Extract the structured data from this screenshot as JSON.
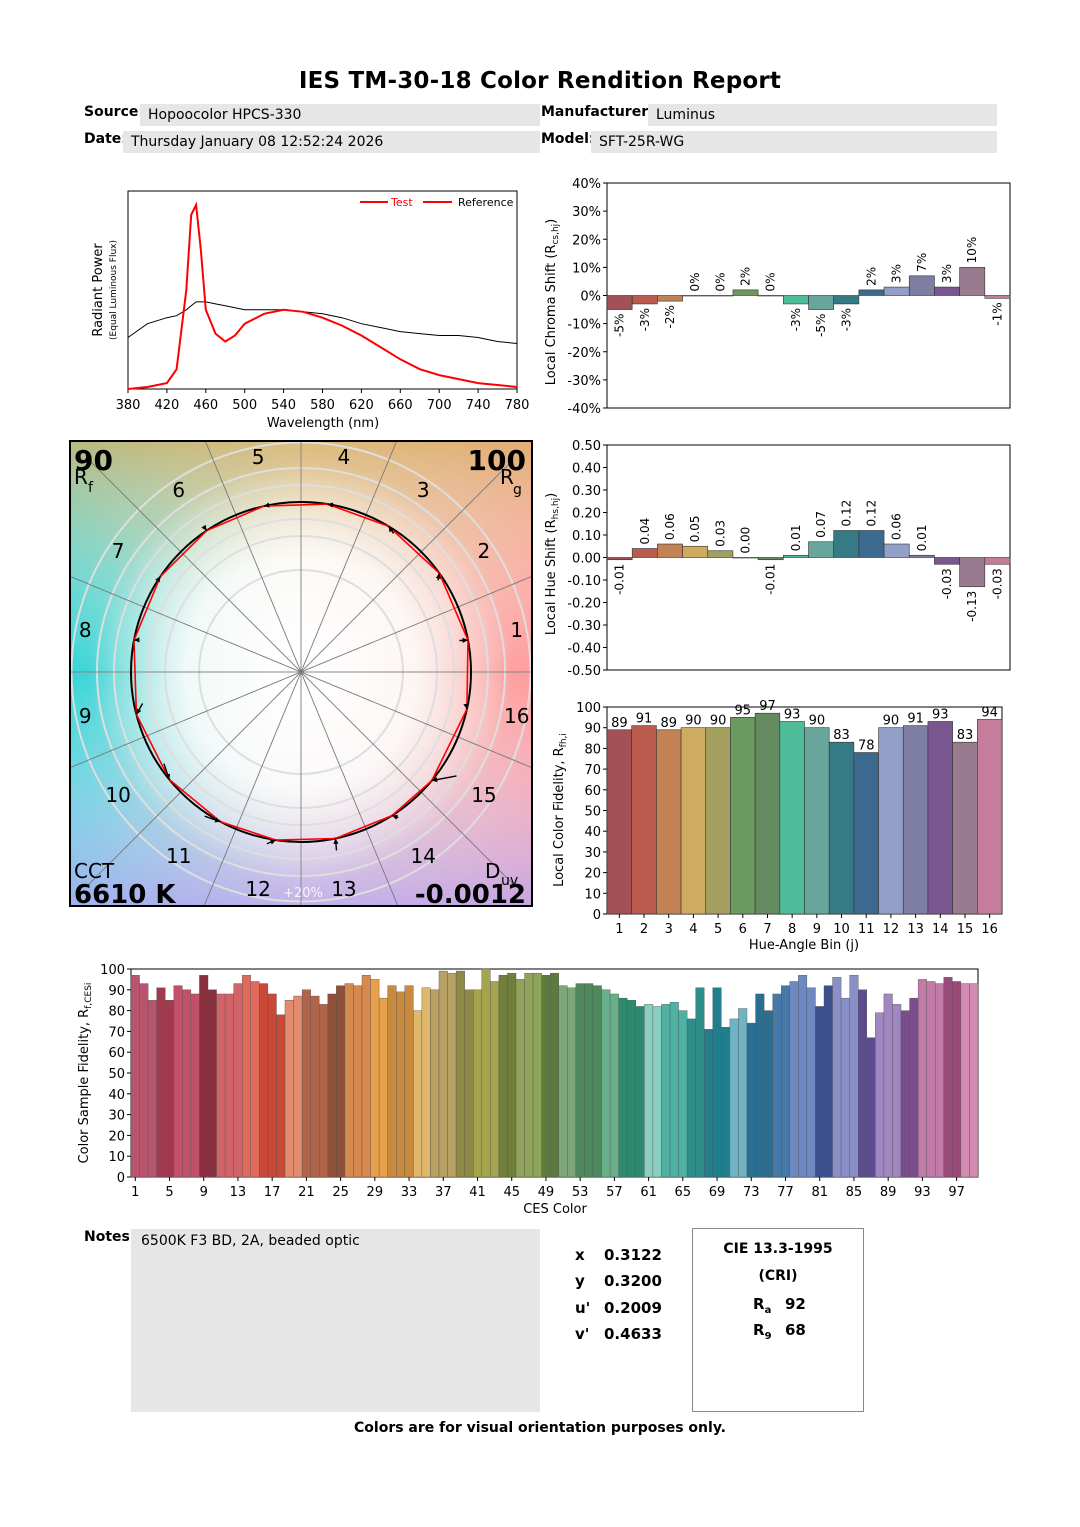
{
  "title": "IES TM-30-18 Color Rendition Report",
  "header": {
    "source_label": "Source:",
    "source": "Hopoocolor HPCS-330",
    "manufacturer_label": "Manufacturer:",
    "manufacturer": "Luminus",
    "date_label": "Date:",
    "date": "Thursday January 08 12:52:24 2026",
    "model_label": "Model:",
    "model": "SFT-25R-WG"
  },
  "spd": {
    "ylabel": "Radiant Power",
    "ylabel2": "(Equal Luminous Flux)",
    "xlabel": "Wavelength (nm)",
    "xticks": [
      "380",
      "420",
      "460",
      "500",
      "540",
      "580",
      "620",
      "660",
      "700",
      "740",
      "780"
    ],
    "legend_test": "Test",
    "legend_ref": "Reference",
    "test_color": "#ff0000",
    "ref_color": "#000000"
  },
  "cvg": {
    "rf_value": "90",
    "rf_label": "R",
    "rf_sub": "f",
    "rg_value": "100",
    "rg_label": "R",
    "rg_sub": "g",
    "cct_label": "CCT",
    "cct_value": "6610 K",
    "duv_label": "D",
    "duv_sub": "uv",
    "duv_value": "-0.0012",
    "scale_label": "+20%",
    "bin_labels": [
      "1",
      "2",
      "3",
      "4",
      "5",
      "6",
      "7",
      "8",
      "9",
      "10",
      "11",
      "12",
      "13",
      "14",
      "15",
      "16"
    ]
  },
  "chroma": {
    "ylabel": "Local Chroma Shift (R",
    "ylabel_sub": "cs,hj",
    "yticks": [
      "40%",
      "30%",
      "20%",
      "10%",
      "0%",
      "-10%",
      "-20%",
      "-30%",
      "-40%"
    ],
    "labels": [
      "-5%",
      "-3%",
      "-2%",
      "0%",
      "0%",
      "2%",
      "0%",
      "-3%",
      "-5%",
      "-3%",
      "2%",
      "3%",
      "7%",
      "3%",
      "10%",
      "-1%"
    ]
  },
  "hue": {
    "ylabel": "Local Hue Shift (R",
    "ylabel_sub": "hs,hj",
    "yticks": [
      "0.50",
      "0.40",
      "0.30",
      "0.20",
      "0.10",
      "0.00",
      "-0.10",
      "-0.20",
      "-0.30",
      "-0.40",
      "-0.50"
    ],
    "labels": [
      "-0.01",
      "0.04",
      "0.06",
      "0.05",
      "0.03",
      "0.00",
      "-0.01",
      "0.01",
      "0.07",
      "0.12",
      "0.12",
      "0.06",
      "0.01",
      "-0.03",
      "-0.13",
      "-0.03"
    ]
  },
  "fidelity": {
    "ylabel": "Local Color Fidelity, R",
    "ylabel_sub": "fh,i",
    "xlabel": "Hue-Angle Bin (j)",
    "yticks": [
      "0",
      "10",
      "20",
      "30",
      "40",
      "50",
      "60",
      "70",
      "80",
      "90",
      "100"
    ],
    "labels": [
      "89",
      "91",
      "89",
      "90",
      "90",
      "95",
      "97",
      "93",
      "90",
      "83",
      "78",
      "90",
      "91",
      "93",
      "83",
      "94"
    ]
  },
  "ces": {
    "ylabel": "Color Sample Fidelity, R",
    "ylabel_sub": "f,CESi",
    "xlabel": "CES Color",
    "yticks": [
      "0",
      "10",
      "20",
      "30",
      "40",
      "50",
      "60",
      "70",
      "80",
      "90",
      "100"
    ],
    "xticks": [
      "1",
      "5",
      "9",
      "13",
      "17",
      "21",
      "25",
      "29",
      "33",
      "37",
      "41",
      "45",
      "49",
      "53",
      "57",
      "61",
      "65",
      "69",
      "73",
      "77",
      "81",
      "85",
      "89",
      "93",
      "97"
    ]
  },
  "bin_colors": [
    "#a35057",
    "#b95b4d",
    "#c28254",
    "#cfab62",
    "#a29f60",
    "#6c995f",
    "#658a60",
    "#4ebc99",
    "#68a69d",
    "#357a84",
    "#3c6a8f",
    "#92a0c7",
    "#7d7ea1",
    "#795690",
    "#9a7a8f",
    "#c67c9b"
  ],
  "notes_label": "Notes:",
  "notes": "6500K F3 BD, 2A, beaded optic",
  "coords": {
    "x_label": "x",
    "x": "0.3122",
    "y_label": "y",
    "y": "0.3200",
    "u_label": "u'",
    "u": "0.2009",
    "v_label": "v'",
    "v": "0.4633"
  },
  "cri": {
    "title": "CIE 13.3-1995",
    "subtitle": "(CRI)",
    "ra_label": "R",
    "ra_sub": "a",
    "ra": "92",
    "r9_label": "R",
    "r9_sub": "9",
    "r9": "68"
  },
  "footer": "Colors are for visual orientation purposes only.",
  "chart_data": [
    {
      "type": "line",
      "title": "",
      "xlabel": "Wavelength (nm)",
      "ylabel": "Radiant Power (Equal Luminous Flux)",
      "xlim": [
        380,
        780
      ],
      "ylim": [
        0,
        1
      ],
      "x": [
        380,
        400,
        420,
        430,
        440,
        445,
        450,
        455,
        460,
        470,
        480,
        490,
        500,
        520,
        540,
        560,
        580,
        600,
        620,
        640,
        660,
        680,
        700,
        720,
        740,
        760,
        780
      ],
      "series": [
        {
          "name": "Test",
          "values": [
            0.0,
            0.01,
            0.03,
            0.1,
            0.5,
            0.88,
            0.93,
            0.7,
            0.4,
            0.28,
            0.24,
            0.27,
            0.33,
            0.38,
            0.4,
            0.39,
            0.36,
            0.32,
            0.27,
            0.21,
            0.15,
            0.1,
            0.07,
            0.05,
            0.03,
            0.02,
            0.01
          ]
        },
        {
          "name": "Reference",
          "values": [
            0.26,
            0.33,
            0.36,
            0.37,
            0.4,
            0.42,
            0.44,
            0.44,
            0.44,
            0.43,
            0.42,
            0.41,
            0.4,
            0.4,
            0.4,
            0.39,
            0.38,
            0.36,
            0.33,
            0.31,
            0.29,
            0.28,
            0.27,
            0.27,
            0.26,
            0.24,
            0.23
          ]
        }
      ]
    },
    {
      "type": "scatter",
      "title": "Color Vector Graphic",
      "categories": [
        "1",
        "2",
        "3",
        "4",
        "5",
        "6",
        "7",
        "8",
        "9",
        "10",
        "11",
        "12",
        "13",
        "14",
        "15",
        "16"
      ],
      "series": [
        {
          "name": "Reference",
          "values": [
            1,
            1,
            1,
            1,
            1,
            1,
            1,
            1,
            1,
            1,
            1,
            1,
            1,
            1,
            1,
            1
          ]
        },
        {
          "name": "Test",
          "values": [
            0.95,
            0.97,
            0.98,
            1.0,
            1.0,
            1.02,
            1.0,
            0.97,
            0.95,
            0.97,
            1.02,
            1.03,
            1.07,
            1.03,
            1.1,
            0.99
          ]
        }
      ],
      "hue_shift": [
        -0.01,
        0.04,
        0.06,
        0.05,
        0.03,
        0.0,
        -0.01,
        0.01,
        0.07,
        0.12,
        0.12,
        0.06,
        0.01,
        -0.03,
        -0.13,
        -0.03
      ]
    },
    {
      "type": "bar",
      "title": "",
      "ylabel": "Local Chroma Shift (Rcs,hj)",
      "categories": [
        "1",
        "2",
        "3",
        "4",
        "5",
        "6",
        "7",
        "8",
        "9",
        "10",
        "11",
        "12",
        "13",
        "14",
        "15",
        "16"
      ],
      "values": [
        -5,
        -3,
        -2,
        0,
        0,
        2,
        0,
        -3,
        -5,
        -3,
        2,
        3,
        7,
        3,
        10,
        -1
      ],
      "ylim": [
        -40,
        40
      ]
    },
    {
      "type": "bar",
      "title": "",
      "ylabel": "Local Hue Shift (Rhs,hj)",
      "categories": [
        "1",
        "2",
        "3",
        "4",
        "5",
        "6",
        "7",
        "8",
        "9",
        "10",
        "11",
        "12",
        "13",
        "14",
        "15",
        "16"
      ],
      "values": [
        -0.01,
        0.04,
        0.06,
        0.05,
        0.03,
        0.0,
        -0.01,
        0.01,
        0.07,
        0.12,
        0.12,
        0.06,
        0.01,
        -0.03,
        -0.13,
        -0.03
      ],
      "ylim": [
        -0.5,
        0.5
      ]
    },
    {
      "type": "bar",
      "title": "",
      "xlabel": "Hue-Angle Bin (j)",
      "ylabel": "Local Color Fidelity, Rfh,i",
      "categories": [
        "1",
        "2",
        "3",
        "4",
        "5",
        "6",
        "7",
        "8",
        "9",
        "10",
        "11",
        "12",
        "13",
        "14",
        "15",
        "16"
      ],
      "values": [
        89,
        91,
        89,
        90,
        90,
        95,
        97,
        93,
        90,
        83,
        78,
        90,
        91,
        93,
        83,
        94
      ],
      "ylim": [
        0,
        100
      ]
    },
    {
      "type": "bar",
      "title": "",
      "xlabel": "CES Color",
      "ylabel": "Color Sample Fidelity, Rf,CESi",
      "ylim": [
        0,
        100
      ],
      "x": [
        1,
        2,
        3,
        4,
        5,
        6,
        7,
        8,
        9,
        10,
        11,
        12,
        13,
        14,
        15,
        16,
        17,
        18,
        19,
        20,
        21,
        22,
        23,
        24,
        25,
        26,
        27,
        28,
        29,
        30,
        31,
        32,
        33,
        34,
        35,
        36,
        37,
        38,
        39,
        40,
        41,
        42,
        43,
        44,
        45,
        46,
        47,
        48,
        49,
        50,
        51,
        52,
        53,
        54,
        55,
        56,
        57,
        58,
        59,
        60,
        61,
        62,
        63,
        64,
        65,
        66,
        67,
        68,
        69,
        70,
        71,
        72,
        73,
        74,
        75,
        76,
        77,
        78,
        79,
        80,
        81,
        82,
        83,
        84,
        85,
        86,
        87,
        88,
        89,
        90,
        91,
        92,
        93,
        94,
        95,
        96,
        97,
        98,
        99
      ],
      "values": [
        97,
        93,
        85,
        91,
        85,
        92,
        90,
        88,
        97,
        90,
        88,
        88,
        93,
        97,
        94,
        93,
        88,
        78,
        85,
        87,
        90,
        87,
        83,
        88,
        92,
        93,
        92,
        97,
        95,
        86,
        92,
        89,
        92,
        80,
        91,
        90,
        99,
        98,
        99,
        90,
        90,
        100,
        94,
        97,
        98,
        95,
        98,
        98,
        97,
        98,
        92,
        91,
        93,
        93,
        92,
        90,
        88,
        86,
        85,
        82,
        83,
        82,
        83,
        84,
        80,
        76,
        91,
        71,
        91,
        72,
        76,
        81,
        74,
        88,
        80,
        88,
        92,
        94,
        97,
        91,
        82,
        92,
        96,
        86,
        97,
        90,
        67,
        79,
        88,
        83,
        80,
        86,
        95,
        94,
        93,
        96,
        94,
        93,
        93
      ]
    }
  ]
}
